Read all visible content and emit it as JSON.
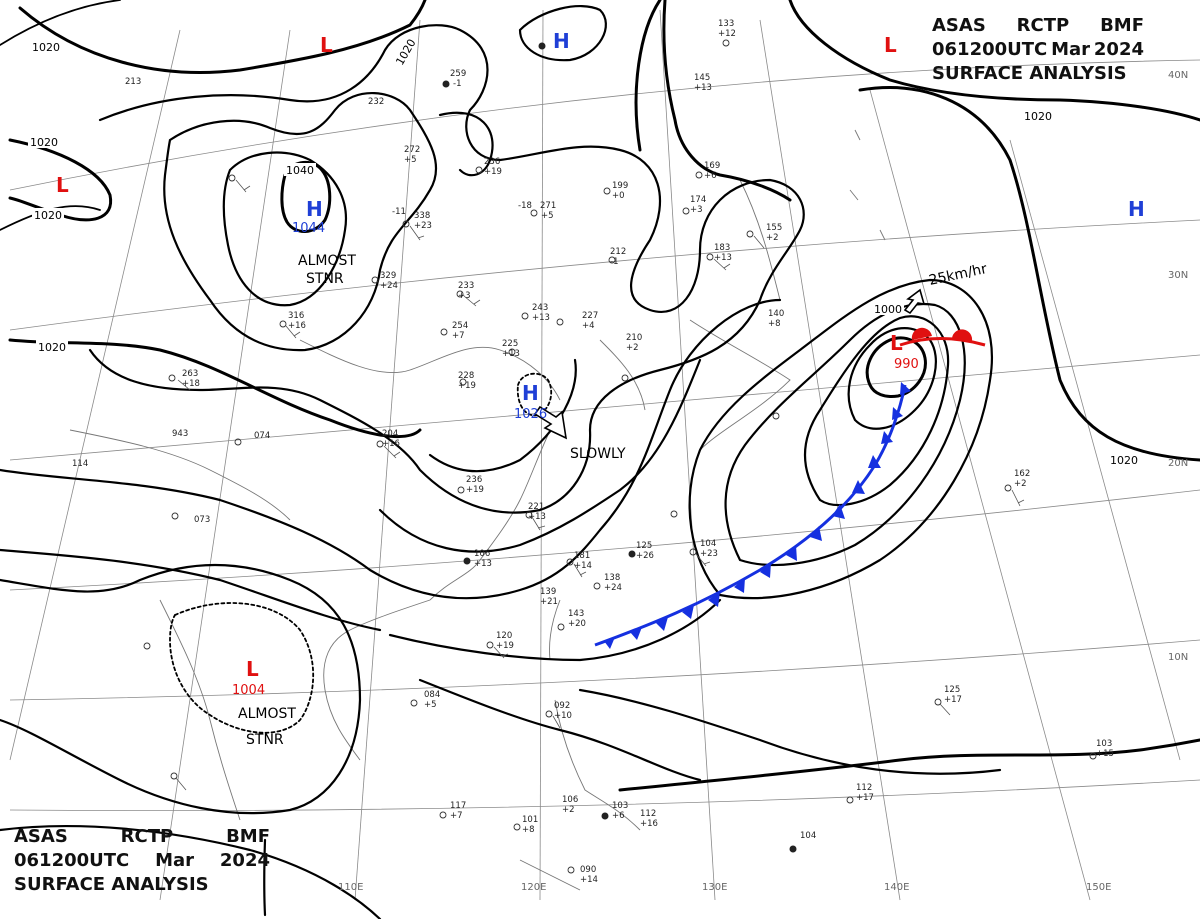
{
  "header": {
    "line1": [
      "ASAS",
      "RCTP",
      "BMF"
    ],
    "line2": [
      "061200UTC",
      "Mar",
      "2024"
    ],
    "line3": "SURFACE ANALYSIS"
  },
  "colors": {
    "high": "#1f3fd6",
    "low": "#e01010",
    "cold_front": "#1530e0",
    "warm_front": "#e01010",
    "isobar": "#000000",
    "grid": "#8a8a8a"
  },
  "longitude_labels": [
    "110E",
    "120E",
    "130E",
    "140E",
    "150E"
  ],
  "latitude_labels": [
    "10N",
    "20N",
    "30N",
    "40N"
  ],
  "pressure_centers": [
    {
      "type": "L",
      "value": ""
    },
    {
      "type": "L",
      "value": ""
    },
    {
      "type": "H",
      "value": ""
    },
    {
      "type": "L",
      "value": ""
    },
    {
      "type": "H",
      "value": "1044"
    },
    {
      "type": "H",
      "value": ""
    },
    {
      "type": "H",
      "value": "1026"
    },
    {
      "type": "L",
      "value": "990"
    },
    {
      "type": "L",
      "value": "1004"
    }
  ],
  "isobar_labels": [
    "1020",
    "1020",
    "1020",
    "1020",
    "1040",
    "1020",
    "1000",
    "1020",
    "1020"
  ],
  "annotations": [
    {
      "text": "ALMOST",
      "icon": "none"
    },
    {
      "text": "STNR",
      "icon": "none"
    },
    {
      "text": "SLOWLY",
      "icon": "movement-arrow-icon"
    },
    {
      "text": "25km/hr",
      "icon": "movement-arrow-icon"
    },
    {
      "text": "ALMOST",
      "icon": "none"
    },
    {
      "text": "STNR",
      "icon": "none"
    }
  ],
  "station_values": [
    "213",
    "259",
    "-1",
    "232",
    "272",
    "+5",
    "236",
    "+19",
    "199",
    "+0",
    "-18",
    "271",
    "+5",
    "-11",
    "338",
    "+23",
    "329",
    "+24",
    "233",
    "+3",
    "254",
    "+7",
    "243",
    "+13",
    "227",
    "+4",
    "225",
    "+13",
    "228",
    "+19",
    "316",
    "+16",
    "263",
    "+18",
    "943",
    "074",
    "114",
    "204",
    "+16",
    "236",
    "+19",
    "221",
    "+13",
    "073",
    "106",
    "+13",
    "181",
    "+14",
    "138",
    "+24",
    "143",
    "+20",
    "139",
    "+21",
    "120",
    "+19",
    "084",
    "+5",
    "092",
    "+10",
    "117",
    "+7",
    "101",
    "+8",
    "090",
    "+14",
    "106",
    "+2",
    "103",
    "+6",
    "112",
    "+16",
    "125",
    "+26",
    "104",
    "+23",
    "125",
    "+17",
    "162",
    "+2",
    "103",
    "+15",
    "112",
    "+17",
    "104",
    "174",
    "+3",
    "183",
    "+13",
    "155",
    "+2",
    "169",
    "+6",
    "145",
    "+13",
    "133",
    "+12",
    "212",
    "-1",
    "140",
    "+8",
    "210",
    "+2"
  ]
}
